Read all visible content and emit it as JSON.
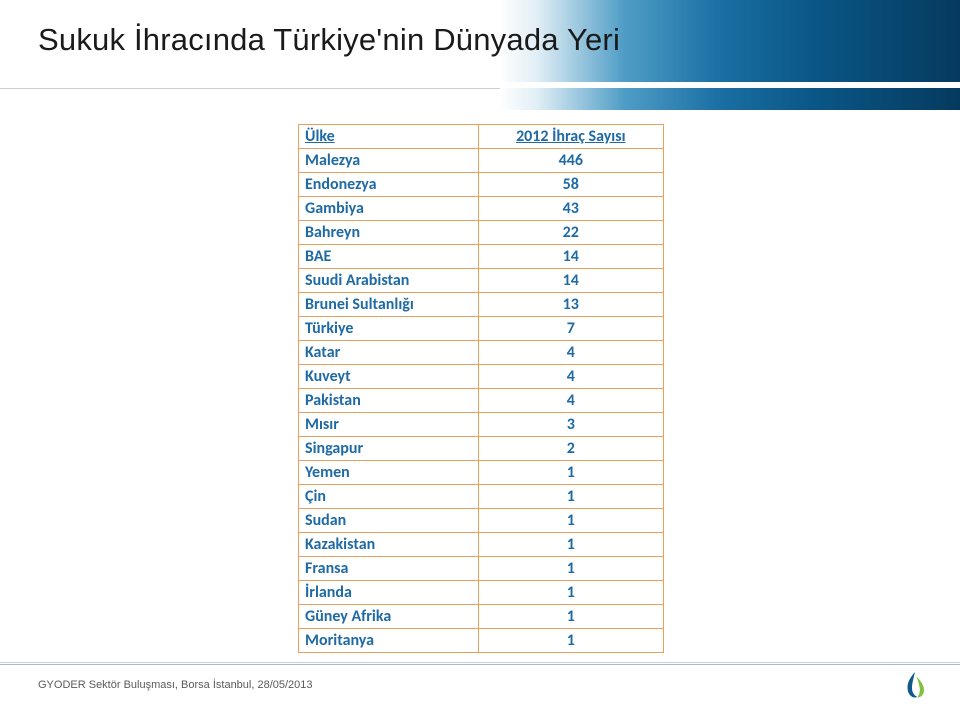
{
  "slide": {
    "title": "Sukuk İhracında Türkiye'nin Dünyada Yeri",
    "footer": "GYODER Sektör Buluşması, Borsa İstanbul, 28/05/2013"
  },
  "table": {
    "header_country": "Ülke",
    "header_value": "2012 İhraç Sayısı",
    "rows": [
      {
        "country": "Malezya",
        "value": "446"
      },
      {
        "country": "Endonezya",
        "value": "58"
      },
      {
        "country": "Gambiya",
        "value": "43"
      },
      {
        "country": "Bahreyn",
        "value": "22"
      },
      {
        "country": "BAE",
        "value": "14"
      },
      {
        "country": "Suudi Arabistan",
        "value": "14"
      },
      {
        "country": "Brunei Sultanlığı",
        "value": "13"
      },
      {
        "country": "Türkiye",
        "value": "7"
      },
      {
        "country": "Katar",
        "value": "4"
      },
      {
        "country": "Kuveyt",
        "value": "4"
      },
      {
        "country": "Pakistan",
        "value": "4"
      },
      {
        "country": "Mısır",
        "value": "3"
      },
      {
        "country": "Singapur",
        "value": "2"
      },
      {
        "country": "Yemen",
        "value": "1"
      },
      {
        "country": "Çin",
        "value": "1"
      },
      {
        "country": "Sudan",
        "value": "1"
      },
      {
        "country": "Kazakistan",
        "value": "1"
      },
      {
        "country": "Fransa",
        "value": "1"
      },
      {
        "country": "İrlanda",
        "value": "1"
      },
      {
        "country": "Güney Afrika",
        "value": "1"
      },
      {
        "country": "Moritanya",
        "value": "1"
      }
    ]
  },
  "style": {
    "border_color": "#e8a05a",
    "text_color": "#1f6aa5",
    "title_color": "#1a1a1a",
    "footer_color": "#5a5a5a",
    "title_fontsize": 31,
    "table_fontsize": 16,
    "footer_fontsize": 11,
    "logo_colors": {
      "drop": "#0f5a8c",
      "leaf": "#7fc241"
    }
  }
}
